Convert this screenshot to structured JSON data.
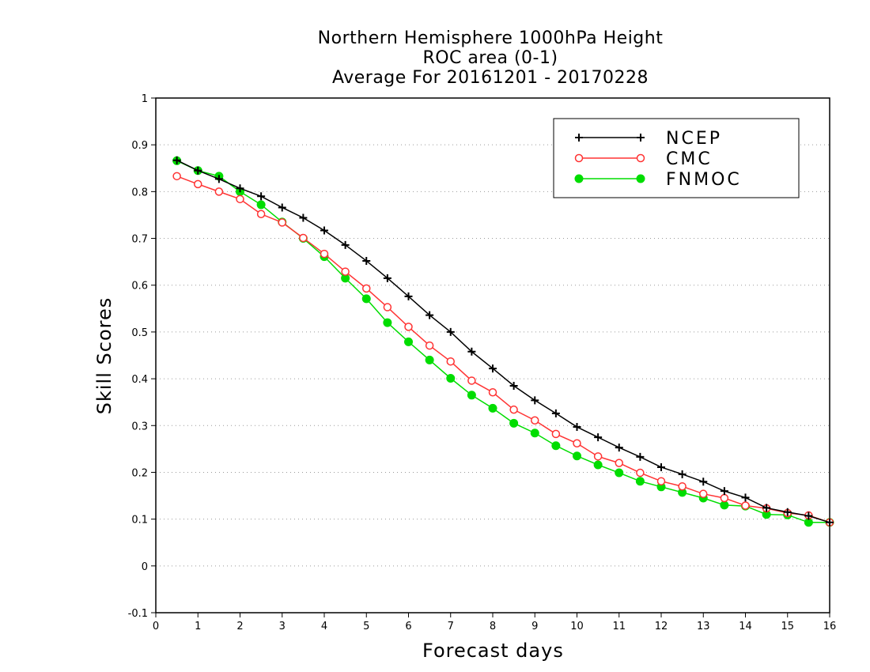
{
  "chart_data": {
    "type": "line",
    "title": [
      "Northern Hemisphere 1000hPa Height",
      "ROC area (0-1)",
      "Average For 20161201 - 20170228"
    ],
    "xlabel": "Forecast days",
    "ylabel": "Skill Scores",
    "xlim": [
      0,
      16
    ],
    "ylim": [
      -0.1,
      1
    ],
    "xticks": [
      "0",
      "1",
      "2",
      "3",
      "4",
      "5",
      "6",
      "7",
      "8",
      "9",
      "10",
      "11",
      "12",
      "13",
      "14",
      "15",
      "16"
    ],
    "yticks": [
      "-0.1",
      "0",
      "0.1",
      "0.2",
      "0.3",
      "0.4",
      "0.5",
      "0.6",
      "0.7",
      "0.8",
      "0.9",
      "1"
    ],
    "grid": "horizontal dotted",
    "legend_position": "top-right",
    "x": [
      0.5,
      1,
      1.5,
      2,
      2.5,
      3,
      3.5,
      4,
      4.5,
      5,
      5.5,
      6,
      6.5,
      7,
      7.5,
      8,
      8.5,
      9,
      9.5,
      10,
      10.5,
      11,
      11.5,
      12,
      12.5,
      13,
      13.5,
      14,
      14.5,
      15,
      15.5,
      16
    ],
    "series": [
      {
        "name": "NCEP",
        "color": "#000000",
        "marker": "plus",
        "values": [
          0.867,
          0.845,
          0.827,
          0.807,
          0.79,
          0.766,
          0.744,
          0.717,
          0.686,
          0.652,
          0.615,
          0.576,
          0.536,
          0.5,
          0.458,
          0.422,
          0.385,
          0.354,
          0.326,
          0.297,
          0.275,
          0.253,
          0.233,
          0.211,
          0.196,
          0.18,
          0.16,
          0.146,
          0.124,
          0.115,
          0.107,
          0.093
        ]
      },
      {
        "name": "CMC",
        "color": "#ff3333",
        "marker": "open-circle",
        "values": [
          0.833,
          0.816,
          0.8,
          0.784,
          0.752,
          0.734,
          0.701,
          0.667,
          0.629,
          0.593,
          0.553,
          0.511,
          0.471,
          0.437,
          0.396,
          0.371,
          0.334,
          0.311,
          0.282,
          0.262,
          0.234,
          0.22,
          0.199,
          0.181,
          0.17,
          0.154,
          0.145,
          0.129,
          0.123,
          0.113,
          0.108,
          0.093
        ]
      },
      {
        "name": "FNMOC",
        "color": "#00dd00",
        "marker": "filled-circle",
        "values": [
          0.866,
          0.845,
          0.833,
          0.8,
          0.772,
          0.735,
          0.7,
          0.661,
          0.615,
          0.571,
          0.52,
          0.479,
          0.44,
          0.401,
          0.365,
          0.337,
          0.305,
          0.284,
          0.257,
          0.235,
          0.216,
          0.199,
          0.181,
          0.169,
          0.157,
          0.145,
          0.13,
          0.128,
          0.11,
          0.109,
          0.093,
          0.093
        ]
      }
    ]
  }
}
